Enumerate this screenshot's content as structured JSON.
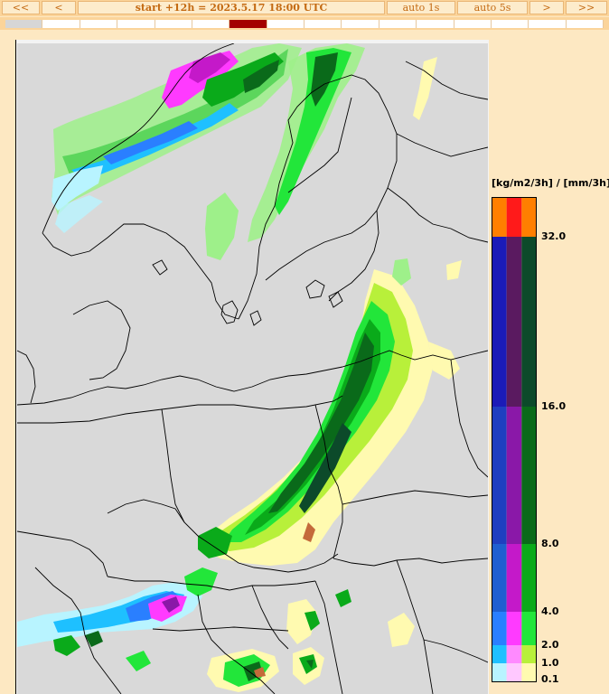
{
  "toolbar": {
    "first": "<<",
    "prev": "<",
    "title": "start +12h  =  2023.5.17 18:00 UTC",
    "auto1": "auto 1s",
    "auto5": "auto 5s",
    "next": ">",
    "last": ">>"
  },
  "timeline": {
    "step_count": 16,
    "past_steps": 1,
    "current_step": 6
  },
  "legend": {
    "title": "[kg/m2/3h] / [mm/3h]",
    "levels": [
      "32.0",
      "16.0",
      "8.0",
      "4.0",
      "2.0",
      "1.0",
      "0.1"
    ],
    "columns": [
      [
        "#ff7f00",
        "#1b1bb8",
        "#1f3fc0",
        "#1f5fd0",
        "#2a7fff",
        "#1ec0ff",
        "#b8f4ff"
      ],
      [
        "#ff1a1a",
        "#5a1a60",
        "#8a18a8",
        "#c419c9",
        "#ff3aff",
        "#ff8aff",
        "#ffc8ff"
      ],
      [
        "#ff7f00",
        "#0c4a2a",
        "#0a6a1a",
        "#0aaa1a",
        "#22e63a",
        "#b8f03a",
        "#fffab0"
      ]
    ]
  },
  "colors": {
    "map_background": "#d9d9d9",
    "frame_background": "#f3f3f3",
    "border_lines": "#000000"
  }
}
